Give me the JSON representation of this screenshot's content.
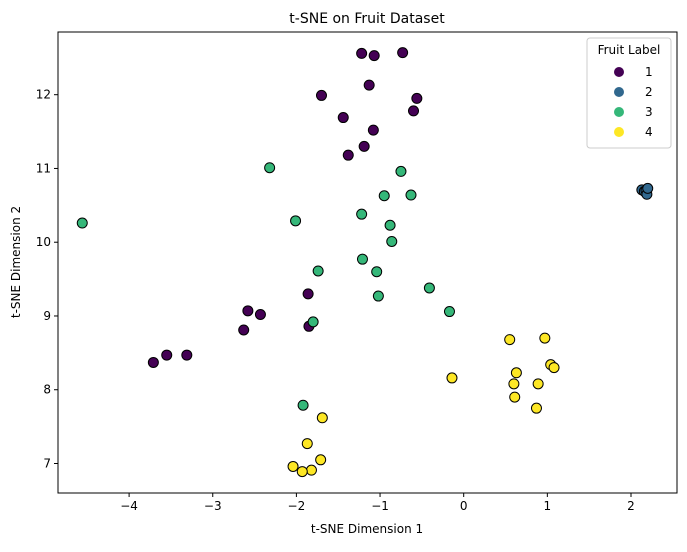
{
  "chart_data": {
    "type": "scatter",
    "title": "t-SNE on Fruit Dataset",
    "xlabel": "t-SNE Dimension 1",
    "ylabel": "t-SNE Dimension 2",
    "xlim": [
      -4.85,
      2.55
    ],
    "ylim": [
      6.6,
      12.85
    ],
    "x_ticks": [
      -4,
      -3,
      -2,
      -1,
      0,
      1,
      2
    ],
    "y_ticks": [
      7,
      8,
      9,
      10,
      11,
      12
    ],
    "grid": false,
    "legend": {
      "title": "Fruit Label",
      "placement": "top-right"
    },
    "series": [
      {
        "name": "1",
        "color": "#440154",
        "points": [
          [
            -1.22,
            12.56
          ],
          [
            -1.07,
            12.53
          ],
          [
            -0.73,
            12.57
          ],
          [
            -1.13,
            12.13
          ],
          [
            -1.7,
            11.99
          ],
          [
            -0.56,
            11.95
          ],
          [
            -0.6,
            11.78
          ],
          [
            -1.44,
            11.69
          ],
          [
            -1.08,
            11.52
          ],
          [
            -1.19,
            11.3
          ],
          [
            -1.38,
            11.18
          ],
          [
            -2.58,
            9.07
          ],
          [
            -2.43,
            9.02
          ],
          [
            -2.63,
            8.81
          ],
          [
            -1.86,
            9.3
          ],
          [
            -1.85,
            8.86
          ],
          [
            -3.55,
            8.47
          ],
          [
            -3.31,
            8.47
          ],
          [
            -3.71,
            8.37
          ]
        ]
      },
      {
        "name": "2",
        "color": "#31688e",
        "points": [
          [
            2.13,
            10.71
          ],
          [
            2.16,
            10.69
          ],
          [
            2.18,
            10.7
          ],
          [
            2.19,
            10.65
          ],
          [
            2.2,
            10.73
          ]
        ]
      },
      {
        "name": "3",
        "color": "#35b779",
        "points": [
          [
            -4.56,
            10.26
          ],
          [
            -2.32,
            11.01
          ],
          [
            -0.75,
            10.96
          ],
          [
            -0.95,
            10.63
          ],
          [
            -0.63,
            10.64
          ],
          [
            -1.22,
            10.38
          ],
          [
            -0.88,
            10.23
          ],
          [
            -2.01,
            10.29
          ],
          [
            -0.86,
            10.01
          ],
          [
            -1.21,
            9.77
          ],
          [
            -1.04,
            9.6
          ],
          [
            -1.74,
            9.61
          ],
          [
            -0.41,
            9.38
          ],
          [
            -1.02,
            9.27
          ],
          [
            -0.17,
            9.06
          ],
          [
            -1.8,
            8.92
          ],
          [
            -1.92,
            7.79
          ]
        ]
      },
      {
        "name": "4",
        "color": "#fde725",
        "points": [
          [
            0.55,
            8.68
          ],
          [
            0.97,
            8.7
          ],
          [
            1.04,
            8.34
          ],
          [
            1.08,
            8.3
          ],
          [
            0.63,
            8.23
          ],
          [
            -0.14,
            8.16
          ],
          [
            0.6,
            8.08
          ],
          [
            0.89,
            8.08
          ],
          [
            0.61,
            7.9
          ],
          [
            0.87,
            7.75
          ],
          [
            -1.69,
            7.62
          ],
          [
            -1.87,
            7.27
          ],
          [
            -1.71,
            7.05
          ],
          [
            -2.04,
            6.96
          ],
          [
            -1.82,
            6.91
          ],
          [
            -1.93,
            6.89
          ]
        ]
      }
    ]
  }
}
